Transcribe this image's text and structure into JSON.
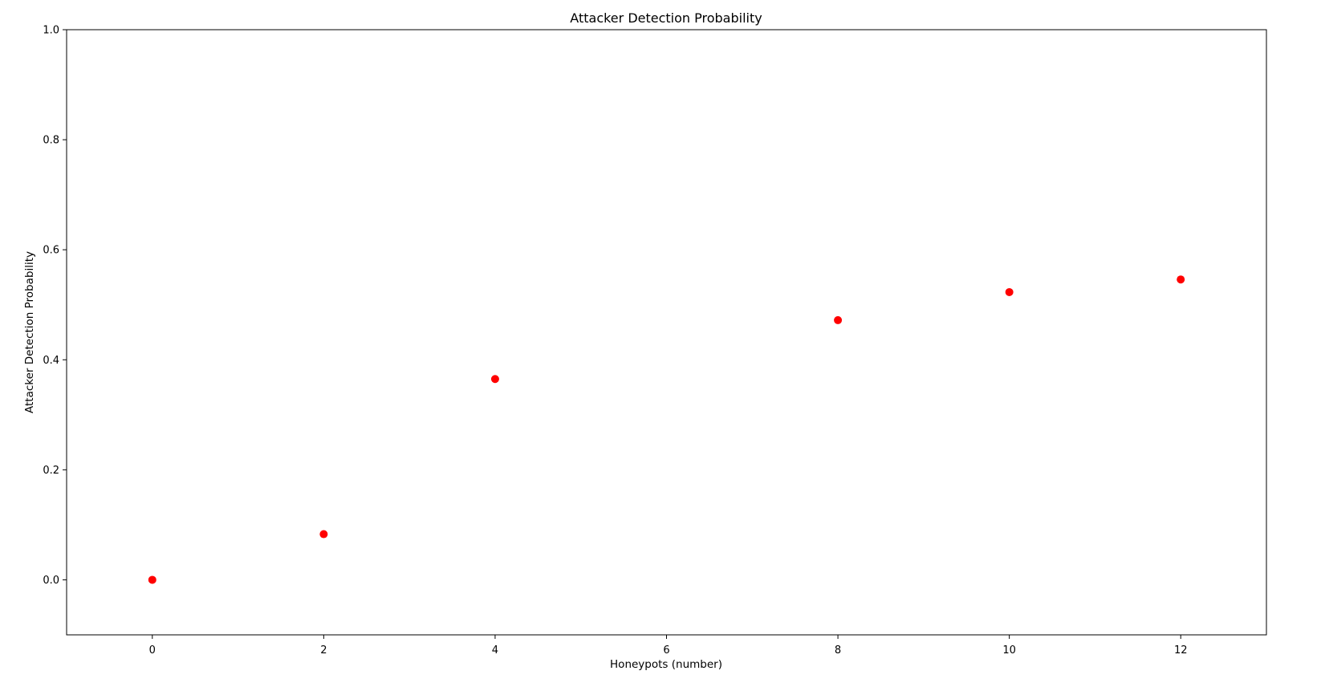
{
  "chart_data": {
    "type": "scatter",
    "title": "Attacker Detection Probability",
    "xlabel": "Honeypots (number)",
    "ylabel": "Attacker Detection Probability",
    "xlim": [
      -1,
      13
    ],
    "ylim": [
      -0.1,
      1.0
    ],
    "x_ticks": [
      0,
      2,
      4,
      6,
      8,
      10,
      12
    ],
    "y_ticks": [
      0.0,
      0.2,
      0.4,
      0.6,
      0.8,
      1.0
    ],
    "x_tick_labels": [
      "0",
      "2",
      "4",
      "6",
      "8",
      "10",
      "12"
    ],
    "y_tick_labels": [
      "0.0",
      "0.2",
      "0.4",
      "0.6",
      "0.8",
      "1.0"
    ],
    "grid": false,
    "legend": "none",
    "marker_color": "#ff0000",
    "series": [
      {
        "x": [
          0,
          2,
          4,
          8,
          10,
          12
        ],
        "y": [
          0.0,
          0.083,
          0.365,
          0.472,
          0.523,
          0.546
        ]
      }
    ]
  }
}
